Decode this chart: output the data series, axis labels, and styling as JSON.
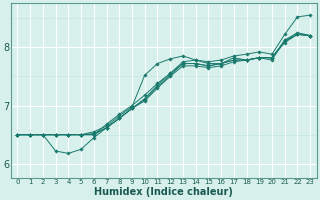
{
  "title": "",
  "xlabel": "Humidex (Indice chaleur)",
  "ylabel": "",
  "bg_color": "#d8f0ec",
  "line_color": "#1a7a6e",
  "grid_major_color": "#ffffff",
  "grid_minor_color": "#c2e8e2",
  "xlim": [
    -0.5,
    23.5
  ],
  "ylim": [
    5.75,
    8.75
  ],
  "x_ticks": [
    0,
    1,
    2,
    3,
    4,
    5,
    6,
    7,
    8,
    9,
    10,
    11,
    12,
    13,
    14,
    15,
    16,
    17,
    18,
    19,
    20,
    21,
    22,
    23
  ],
  "y_ticks": [
    6,
    7,
    8
  ],
  "series": [
    {
      "y": [
        6.5,
        6.5,
        6.5,
        6.5,
        6.5,
        6.5,
        6.5,
        6.68,
        6.85,
        7.0,
        7.18,
        7.38,
        7.55,
        7.72,
        7.72,
        7.68,
        7.72,
        7.78,
        7.78,
        7.82,
        7.82,
        8.12,
        8.25,
        8.2
      ],
      "markers": [
        0,
        1,
        2,
        3,
        4,
        5,
        6,
        7,
        8,
        9,
        10,
        11,
        12,
        13,
        14,
        15,
        16,
        17,
        18,
        19,
        20,
        21,
        22,
        23
      ]
    },
    {
      "y": [
        6.5,
        6.5,
        6.5,
        6.5,
        6.5,
        6.5,
        6.52,
        6.62,
        6.78,
        6.95,
        7.08,
        7.3,
        7.5,
        7.68,
        7.68,
        7.65,
        7.68,
        7.75,
        7.78,
        7.82,
        7.82,
        8.08,
        8.22,
        8.2
      ],
      "markers": [
        0,
        1,
        2,
        3,
        4,
        5,
        6,
        7,
        8,
        9,
        10,
        11,
        12,
        13,
        14,
        15,
        16,
        17,
        18,
        19,
        20,
        21,
        22,
        23
      ]
    },
    {
      "y": [
        6.5,
        6.5,
        6.5,
        6.22,
        6.18,
        6.25,
        6.45,
        6.62,
        6.78,
        6.95,
        7.12,
        7.35,
        7.55,
        7.75,
        7.78,
        7.75,
        7.78,
        7.85,
        7.88,
        7.92,
        7.88,
        8.22,
        8.52,
        8.55
      ],
      "markers": [
        0,
        1,
        2,
        3,
        4,
        5,
        6,
        7,
        8,
        9,
        10,
        11,
        12,
        13,
        14,
        15,
        16,
        17,
        18,
        19,
        20,
        21,
        22,
        23
      ]
    },
    {
      "y": [
        6.5,
        6.5,
        6.5,
        6.5,
        6.5,
        6.5,
        6.5,
        6.62,
        6.78,
        6.95,
        7.1,
        7.32,
        7.52,
        7.72,
        7.72,
        7.68,
        7.72,
        7.78,
        7.78,
        7.82,
        7.82,
        8.1,
        8.22,
        8.2
      ],
      "markers": [
        0,
        1,
        2,
        3,
        4,
        5,
        6,
        7,
        8,
        9,
        10,
        11,
        12,
        13,
        14,
        15,
        16,
        17,
        18,
        19,
        20,
        21,
        22,
        23
      ]
    },
    {
      "y": [
        6.5,
        6.5,
        6.5,
        6.5,
        6.5,
        6.5,
        6.55,
        6.65,
        6.82,
        6.98,
        7.52,
        7.72,
        7.8,
        7.85,
        7.78,
        7.72,
        7.72,
        7.82,
        7.78,
        7.82,
        7.78,
        8.12,
        8.22,
        8.2
      ],
      "markers": [
        0,
        1,
        2,
        3,
        4,
        5,
        6,
        7,
        8,
        9,
        10,
        11,
        12,
        13,
        14,
        15,
        16,
        17,
        18,
        19,
        20,
        21,
        22,
        23
      ]
    }
  ]
}
